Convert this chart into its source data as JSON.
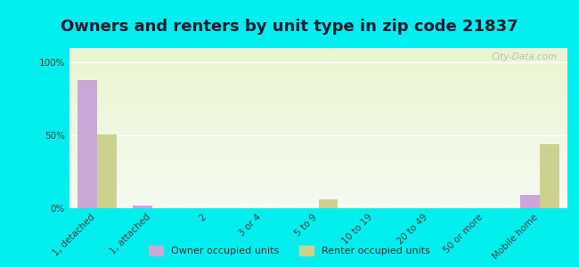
{
  "title": "Owners and renters by unit type in zip code 21837",
  "categories": [
    "1, detached",
    "1, attached",
    "2",
    "3 or 4",
    "5 to 9",
    "10 to 19",
    "20 to 49",
    "50 or more",
    "Mobile home"
  ],
  "owner_values": [
    88,
    2,
    0,
    0,
    0,
    0,
    0,
    0,
    9
  ],
  "renter_values": [
    51,
    0,
    0,
    0,
    6,
    0,
    0,
    0,
    44
  ],
  "owner_color": "#c9a8d8",
  "renter_color": "#cdd190",
  "background_color": "#00eeee",
  "ylabel_ticks": [
    "0%",
    "50%",
    "100%"
  ],
  "ytick_vals": [
    0,
    50,
    100
  ],
  "ylim": [
    0,
    110
  ],
  "watermark": "City-Data.com",
  "legend_owner": "Owner occupied units",
  "legend_renter": "Renter occupied units",
  "title_fontsize": 13,
  "tick_fontsize": 7.5,
  "bar_width": 0.35,
  "title_color": "#1a1a2e"
}
